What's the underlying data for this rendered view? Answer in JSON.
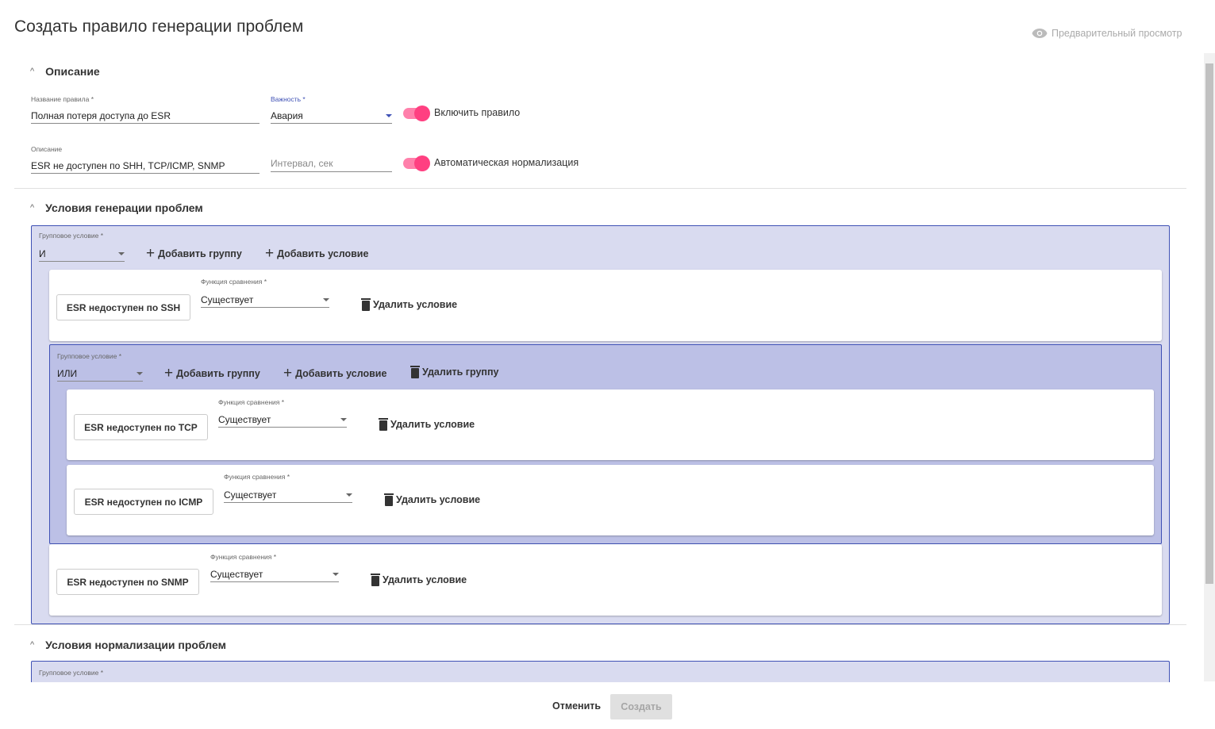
{
  "title": "Создать правило генерации проблем",
  "preview": "Предварительный просмотр",
  "description": {
    "header": "Описание",
    "rule_name_label": "Название правила *",
    "rule_name": "Полная потеря доступа до ESR",
    "severity_label": "Важность *",
    "severity": "Авария",
    "enable_label": "Включить правило",
    "enable_on": true,
    "desc_label": "Описание",
    "desc": "ESR не доступен по SHH, TCP/ICMP, SNMP",
    "interval_placeholder": "Интервал, сек",
    "auto_norm_label": "Автоматическая нормализация",
    "auto_norm_on": true
  },
  "generation": {
    "header": "Условия генерации проблем",
    "group_label": "Групповое условие *",
    "group_op": "И",
    "add_group": "Добавить группу",
    "add_condition": "Добавить условие",
    "compare_label": "Функция сравнения *",
    "delete_condition": "Удалить условие",
    "delete_group": "Удалить группу",
    "conditions": [
      {
        "name": "ESR недоступен по SSH",
        "func": "Существует"
      },
      {
        "name": "ESR недоступен по TCP",
        "func": "Существует"
      },
      {
        "name": "ESR недоступен по ICMP",
        "func": "Существует"
      },
      {
        "name": "ESR недоступен по SNMP",
        "func": "Существует"
      }
    ],
    "subgroup_op": "ИЛИ"
  },
  "normalization": {
    "header": "Условия нормализации проблем",
    "group_label": "Групповое условие *"
  },
  "footer": {
    "cancel": "Отменить",
    "create": "Создать"
  },
  "colors": {
    "accent": "#ff4081",
    "primary": "#3f51b5",
    "group_bg": "#d9dbf0",
    "subgroup_bg": "#bcc0e6"
  }
}
